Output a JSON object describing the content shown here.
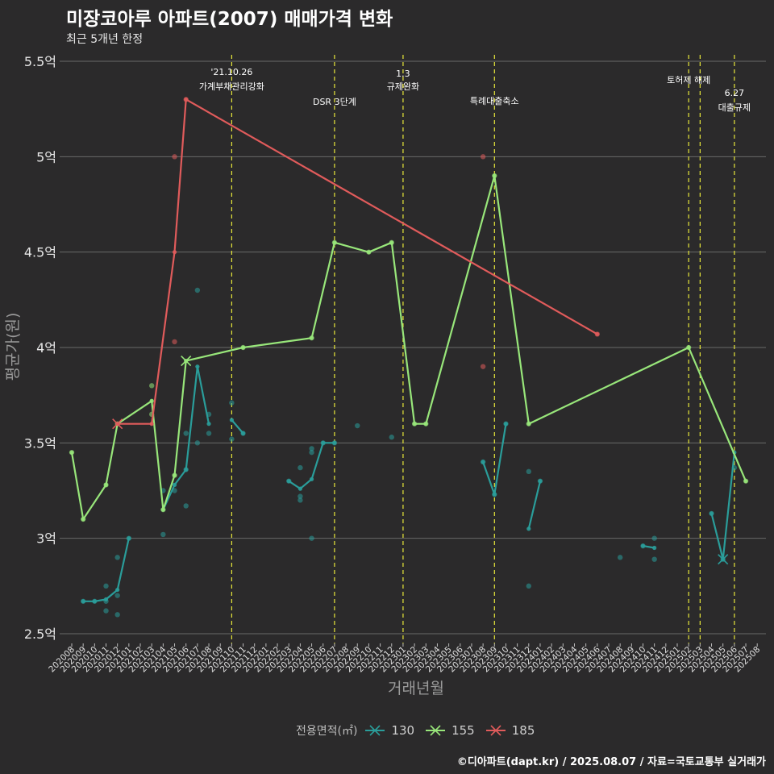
{
  "title": "미장코아루 아파트(2007) 매매가격 변화",
  "subtitle": "최근 5개년 한정",
  "caption": "©디아파트(dapt.kr) / 2025.08.07 / 자료=국토교통부 실거래가",
  "legend": {
    "title": "전용면적(㎡)",
    "items": [
      {
        "label": "130",
        "color": "#2a9d9a"
      },
      {
        "label": "155",
        "color": "#98e67a"
      },
      {
        "label": "185",
        "color": "#e05b5b"
      }
    ]
  },
  "chart_data": {
    "type": "line",
    "title": "미장코아루 아파트(2007) 매매가격 변화",
    "subtitle": "최근 5개년 한정",
    "xlabel": "거래년월",
    "ylabel": "평균가(원)",
    "categories": [
      "202008",
      "202009",
      "202010",
      "202011",
      "202012",
      "202101",
      "202102",
      "202103",
      "202104",
      "202105",
      "202106",
      "202107",
      "202108",
      "202109",
      "202110",
      "202111",
      "202112",
      "202201",
      "202202",
      "202203",
      "202204",
      "202205",
      "202206",
      "202207",
      "202208",
      "202209",
      "202210",
      "202211",
      "202212",
      "202301",
      "202302",
      "202303",
      "202304",
      "202305",
      "202306",
      "202307",
      "202308",
      "202309",
      "202310",
      "202311",
      "202312",
      "202401",
      "202402",
      "202403",
      "202404",
      "202405",
      "202406",
      "202407",
      "202408",
      "202409",
      "202410",
      "202411",
      "202412",
      "202501",
      "202502",
      "202503",
      "202504",
      "202505",
      "202506",
      "202507",
      "202508"
    ],
    "y_ticks": [
      {
        "value": 2.5,
        "label": "2.5억"
      },
      {
        "value": 3.0,
        "label": "3억"
      },
      {
        "value": 3.5,
        "label": "3.5억"
      },
      {
        "value": 4.0,
        "label": "4억"
      },
      {
        "value": 4.5,
        "label": "4.5억"
      },
      {
        "value": 5.0,
        "label": "5억"
      },
      {
        "value": 5.5,
        "label": "5.5억"
      }
    ],
    "ylim": [
      2.5,
      5.5
    ],
    "y_unit": "억",
    "grid": true,
    "legend_position": "bottom",
    "series": [
      {
        "name": "130",
        "color": "#2a9d9a",
        "line_segments": [
          [
            [
              "202009",
              2.67
            ],
            [
              "202010",
              2.67
            ],
            [
              "202011",
              2.68
            ],
            [
              "202012",
              2.73
            ],
            [
              "202101",
              3.0
            ]
          ],
          [
            [
              "202104",
              3.15
            ],
            [
              "202105",
              3.28
            ],
            [
              "202106",
              3.36
            ],
            [
              "202107",
              3.9
            ],
            [
              "202108",
              3.6
            ]
          ],
          [
            [
              "202110",
              3.62
            ],
            [
              "202111",
              3.55
            ]
          ],
          [
            [
              "202203",
              3.3
            ],
            [
              "202204",
              3.26
            ],
            [
              "202205",
              3.31
            ],
            [
              "202206",
              3.5
            ],
            [
              "202207",
              3.5
            ]
          ],
          [
            [
              "202308",
              3.4
            ],
            [
              "202309",
              3.23
            ],
            [
              "202310",
              3.6
            ]
          ],
          [
            [
              "202312",
              3.05
            ],
            [
              "202401",
              3.3
            ]
          ],
          [
            [
              "202410",
              2.96
            ],
            [
              "202411",
              2.95
            ]
          ],
          [
            [
              "202504",
              3.13
            ],
            [
              "202505",
              2.89
            ],
            [
              "202506",
              3.45
            ]
          ]
        ],
        "points": [
          [
            "202009",
            2.67
          ],
          [
            "202010",
            2.67
          ],
          [
            "202011",
            2.67
          ],
          [
            "202011",
            2.75
          ],
          [
            "202011",
            2.62
          ],
          [
            "202012",
            2.7
          ],
          [
            "202012",
            2.6
          ],
          [
            "202012",
            2.9
          ],
          [
            "202101",
            3.0
          ],
          [
            "202104",
            3.02
          ],
          [
            "202104",
            3.25
          ],
          [
            "202105",
            3.25
          ],
          [
            "202106",
            3.55
          ],
          [
            "202106",
            3.17
          ],
          [
            "202106",
            3.36
          ],
          [
            "202107",
            4.3
          ],
          [
            "202107",
            3.5
          ],
          [
            "202108",
            3.65
          ],
          [
            "202108",
            3.55
          ],
          [
            "202110",
            3.52
          ],
          [
            "202110",
            3.71
          ],
          [
            "202111",
            3.55
          ],
          [
            "202203",
            3.3
          ],
          [
            "202204",
            3.37
          ],
          [
            "202204",
            3.22
          ],
          [
            "202204",
            3.2
          ],
          [
            "202205",
            3.45
          ],
          [
            "202205",
            3.47
          ],
          [
            "202205",
            3.0
          ],
          [
            "202206",
            3.5
          ],
          [
            "202207",
            3.5
          ],
          [
            "202209",
            3.59
          ],
          [
            "202212",
            3.53
          ],
          [
            "202308",
            3.4
          ],
          [
            "202309",
            3.23
          ],
          [
            "202310",
            3.6
          ],
          [
            "202312",
            2.75
          ],
          [
            "202312",
            3.35
          ],
          [
            "202401",
            3.3
          ],
          [
            "202408",
            2.9
          ],
          [
            "202410",
            2.96
          ],
          [
            "202411",
            2.89
          ],
          [
            "202411",
            3.0
          ],
          [
            "202504",
            3.13
          ],
          [
            "202505",
            2.89
          ],
          [
            "202506",
            3.37
          ]
        ],
        "markers_x": [
          [
            "202505",
            2.89
          ]
        ]
      },
      {
        "name": "155",
        "color": "#98e67a",
        "line_segments": [
          [
            [
              "202008",
              3.45
            ],
            [
              "202009",
              3.1
            ],
            [
              "202011",
              3.28
            ],
            [
              "202012",
              3.6
            ],
            [
              "202103",
              3.72
            ],
            [
              "202104",
              3.15
            ],
            [
              "202105",
              3.33
            ],
            [
              "202106",
              3.93
            ],
            [
              "202111",
              4.0
            ],
            [
              "202205",
              4.05
            ],
            [
              "202207",
              4.55
            ],
            [
              "202210",
              4.5
            ],
            [
              "202212",
              4.55
            ],
            [
              "202302",
              3.6
            ],
            [
              "202303",
              3.6
            ],
            [
              "202309",
              4.9
            ],
            [
              "202312",
              3.6
            ],
            [
              "202502",
              4.0
            ],
            [
              "202507",
              3.3
            ]
          ]
        ],
        "points": [
          [
            "202008",
            3.45
          ],
          [
            "202009",
            3.1
          ],
          [
            "202011",
            3.28
          ],
          [
            "202012",
            3.6
          ],
          [
            "202103",
            3.8
          ],
          [
            "202103",
            3.65
          ],
          [
            "202104",
            3.15
          ],
          [
            "202105",
            3.33
          ],
          [
            "202111",
            4.0
          ],
          [
            "202205",
            4.05
          ],
          [
            "202207",
            4.55
          ],
          [
            "202210",
            4.5
          ],
          [
            "202212",
            4.55
          ],
          [
            "202302",
            3.6
          ],
          [
            "202303",
            3.6
          ],
          [
            "202309",
            4.9
          ],
          [
            "202312",
            3.6
          ],
          [
            "202502",
            4.0
          ],
          [
            "202507",
            3.3
          ]
        ],
        "markers_x": [
          [
            "202106",
            3.93
          ]
        ]
      },
      {
        "name": "185",
        "color": "#e05b5b",
        "line_segments": [
          [
            [
              "202012",
              3.6
            ],
            [
              "202103",
              3.6
            ],
            [
              "202105",
              4.5
            ],
            [
              "202106",
              5.3
            ],
            [
              "202406",
              4.07
            ]
          ]
        ],
        "points": [
          [
            "202105",
            5.0
          ],
          [
            "202105",
            4.03
          ],
          [
            "202106",
            5.3
          ],
          [
            "202308",
            5.0
          ],
          [
            "202308",
            3.9
          ],
          [
            "202406",
            4.07
          ]
        ],
        "markers_x": [
          [
            "202012",
            3.6
          ]
        ]
      }
    ],
    "annotations": [
      {
        "x": "202110",
        "lines": [
          "'21.10.26",
          "가계부채관리강화"
        ]
      },
      {
        "x": "202207",
        "lines": [
          "DSR 3단계"
        ]
      },
      {
        "x": "202301",
        "lines": [
          "1.3",
          "규제완화"
        ]
      },
      {
        "x": "202309",
        "lines": [
          "특례대출축소"
        ]
      },
      {
        "x": "202502",
        "lines": [
          "토허제 해제"
        ]
      },
      {
        "x": "202503",
        "lines": []
      },
      {
        "x": "202506",
        "lines": [
          "6.27",
          "대출규제"
        ]
      }
    ]
  }
}
